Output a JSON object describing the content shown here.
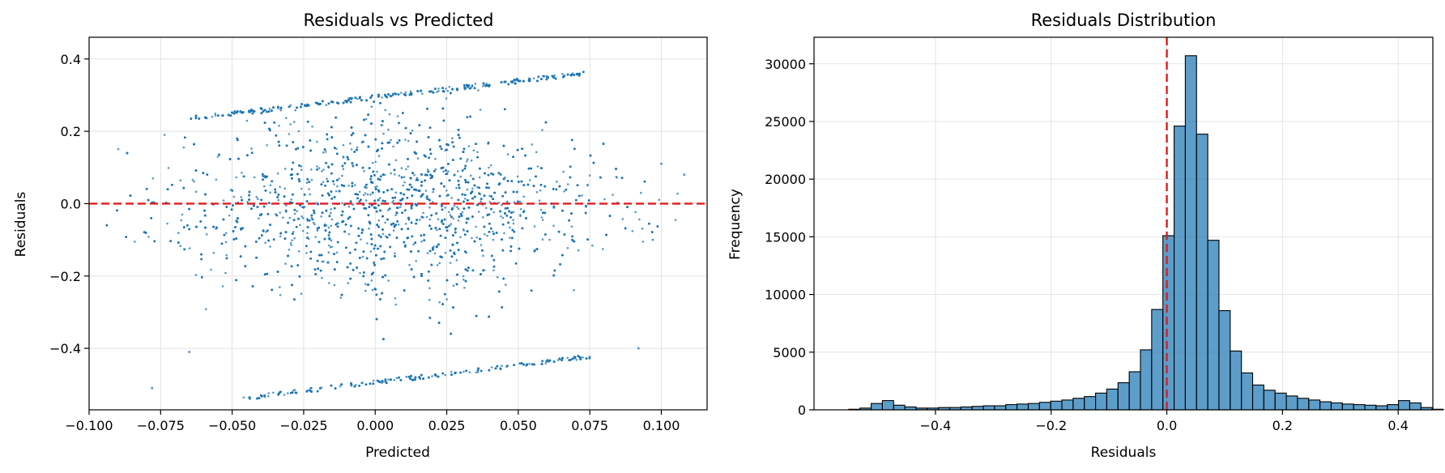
{
  "chart_data": [
    {
      "type": "scatter",
      "title": "Residuals vs Predicted",
      "xlabel": "Predicted",
      "ylabel": "Residuals",
      "xlim": [
        -0.1,
        0.116
      ],
      "ylim": [
        -0.57,
        0.46
      ],
      "xticks": [
        -0.1,
        -0.075,
        -0.05,
        -0.025,
        0.0,
        0.025,
        0.05,
        0.075,
        0.1
      ],
      "xtick_labels": [
        "−0.100",
        "−0.075",
        "−0.050",
        "−0.025",
        "0.000",
        "0.025",
        "0.050",
        "0.075",
        "0.100"
      ],
      "yticks": [
        -0.4,
        -0.2,
        0.0,
        0.2,
        0.4
      ],
      "ytick_labels": [
        "−0.4",
        "−0.2",
        "0.0",
        "0.2",
        "0.4"
      ],
      "grid": true,
      "point_color": "#1f77b4",
      "reference_line": {
        "y": 0.0,
        "color": "#e31a1c",
        "style": "dashed"
      },
      "distribution": {
        "center": [
          0.005,
          0.0
        ],
        "upper_edge": [
          [
            -0.092,
            0.24
          ],
          [
            0.0,
            0.3
          ],
          [
            0.05,
            0.37
          ],
          [
            0.08,
            0.41
          ]
        ],
        "lower_edge": [
          [
            -0.05,
            -0.55
          ],
          [
            0.0,
            -0.5
          ],
          [
            0.05,
            -0.45
          ],
          [
            0.08,
            -0.41
          ]
        ],
        "note_points": [
          {
            "x": -0.078,
            "y": -0.51
          },
          {
            "x": -0.065,
            "y": -0.41
          },
          {
            "x": 0.1,
            "y": 0.11
          },
          {
            "x": 0.108,
            "y": 0.08
          },
          {
            "x": 0.092,
            "y": -0.4
          },
          {
            "x": 0.097,
            "y": -0.1
          }
        ]
      }
    },
    {
      "type": "bar",
      "title": "Residuals Distribution",
      "xlabel": "Residuals",
      "ylabel": "Frequency",
      "xlim": [
        -0.61,
        0.46
      ],
      "ylim": [
        0,
        32300
      ],
      "xticks": [
        -0.4,
        -0.2,
        0.0,
        0.2,
        0.4
      ],
      "xtick_labels": [
        "−0.4",
        "−0.2",
        "0.0",
        "0.2",
        "0.4"
      ],
      "yticks": [
        0,
        5000,
        10000,
        15000,
        20000,
        25000,
        30000
      ],
      "ytick_labels": [
        "0",
        "5000",
        "10000",
        "15000",
        "20000",
        "25000",
        "30000"
      ],
      "grid": true,
      "bar_color": "#1f77b4",
      "bin_start": -0.55,
      "bin_width": 0.0194,
      "values": [
        50,
        150,
        550,
        800,
        400,
        250,
        150,
        150,
        200,
        200,
        250,
        300,
        350,
        350,
        450,
        500,
        550,
        650,
        750,
        850,
        1000,
        1150,
        1450,
        1800,
        2350,
        3300,
        5200,
        8700,
        15100,
        24600,
        30700,
        23900,
        14700,
        8600,
        5100,
        3200,
        2150,
        1700,
        1450,
        1200,
        1000,
        850,
        700,
        600,
        500,
        450,
        400,
        350,
        450,
        800,
        600,
        200,
        50
      ],
      "reference_line": {
        "x": 0.0,
        "color": "#e31a1c",
        "style": "dashed"
      }
    }
  ]
}
